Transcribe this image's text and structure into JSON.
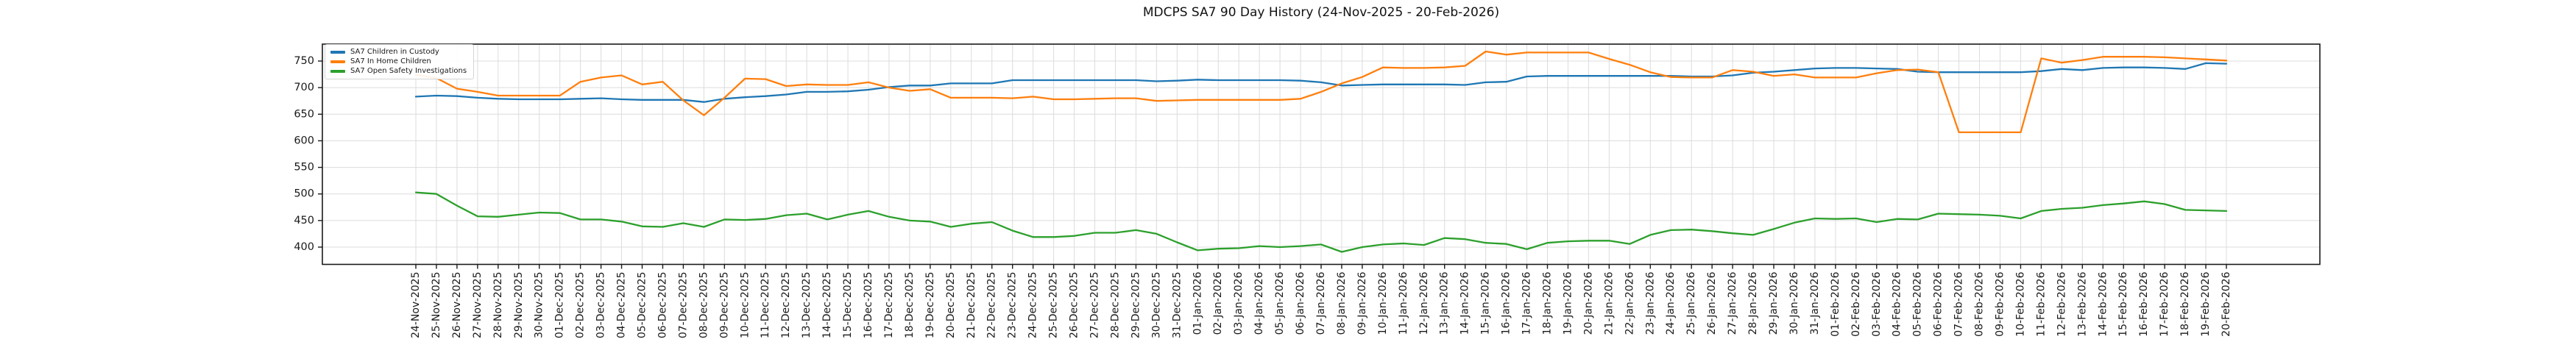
{
  "chart_data": {
    "type": "line",
    "title": "MDCPS SA7 90 Day History (24-Nov-2025 - 20-Feb-2026)",
    "grid": true,
    "legend_position": "upper-left",
    "ylim": [
      368,
      782
    ],
    "y_ticks": [
      400,
      450,
      500,
      550,
      600,
      650,
      700,
      750
    ],
    "colors": {
      "axis": "#1a1a1a",
      "grid": "#dcdcdc",
      "text": "#1a1a1a",
      "background": "#ffffff"
    },
    "x_labels": [
      "24-Nov-2025",
      "25-Nov-2025",
      "26-Nov-2025",
      "27-Nov-2025",
      "28-Nov-2025",
      "29-Nov-2025",
      "30-Nov-2025",
      "01-Dec-2025",
      "02-Dec-2025",
      "03-Dec-2025",
      "04-Dec-2025",
      "05-Dec-2025",
      "06-Dec-2025",
      "07-Dec-2025",
      "08-Dec-2025",
      "09-Dec-2025",
      "10-Dec-2025",
      "11-Dec-2025",
      "12-Dec-2025",
      "13-Dec-2025",
      "14-Dec-2025",
      "15-Dec-2025",
      "16-Dec-2025",
      "17-Dec-2025",
      "18-Dec-2025",
      "19-Dec-2025",
      "20-Dec-2025",
      "21-Dec-2025",
      "22-Dec-2025",
      "23-Dec-2025",
      "24-Dec-2025",
      "25-Dec-2025",
      "26-Dec-2025",
      "27-Dec-2025",
      "28-Dec-2025",
      "29-Dec-2025",
      "30-Dec-2025",
      "31-Dec-2025",
      "01-Jan-2026",
      "02-Jan-2026",
      "03-Jan-2026",
      "04-Jan-2026",
      "05-Jan-2026",
      "06-Jan-2026",
      "07-Jan-2026",
      "08-Jan-2026",
      "09-Jan-2026",
      "10-Jan-2026",
      "11-Jan-2026",
      "12-Jan-2026",
      "13-Jan-2026",
      "14-Jan-2026",
      "15-Jan-2026",
      "16-Jan-2026",
      "17-Jan-2026",
      "18-Jan-2026",
      "19-Jan-2026",
      "20-Jan-2026",
      "21-Jan-2026",
      "22-Jan-2026",
      "23-Jan-2026",
      "24-Jan-2026",
      "25-Jan-2026",
      "26-Jan-2026",
      "27-Jan-2026",
      "28-Jan-2026",
      "29-Jan-2026",
      "30-Jan-2026",
      "31-Jan-2026",
      "01-Feb-2026",
      "02-Feb-2026",
      "03-Feb-2026",
      "04-Feb-2026",
      "05-Feb-2026",
      "06-Feb-2026",
      "07-Feb-2026",
      "08-Feb-2026",
      "09-Feb-2026",
      "10-Feb-2026",
      "11-Feb-2026",
      "12-Feb-2026",
      "13-Feb-2026",
      "14-Feb-2026",
      "15-Feb-2026",
      "16-Feb-2026",
      "17-Feb-2026",
      "18-Feb-2026",
      "19-Feb-2026",
      "20-Feb-2026"
    ],
    "series": [
      {
        "name": "SA7 Children in Custody",
        "color": "#1f77b4",
        "values": [
          683,
          685,
          684,
          681,
          679,
          678,
          678,
          678,
          679,
          680,
          678,
          677,
          677,
          677,
          673,
          679,
          682,
          684,
          687,
          692,
          692,
          693,
          696,
          701,
          704,
          704,
          708,
          708,
          708,
          714,
          714,
          714,
          714,
          714,
          714,
          714,
          712,
          713,
          715,
          714,
          714,
          714,
          714,
          713,
          710,
          704,
          705,
          706,
          706,
          706,
          706,
          705,
          710,
          711,
          721,
          722,
          722,
          722,
          722,
          722,
          722,
          722,
          721,
          721,
          723,
          728,
          730,
          733,
          736,
          737,
          737,
          736,
          735,
          730,
          729,
          729,
          729,
          729,
          729,
          731,
          735,
          733,
          737,
          738,
          738,
          737,
          735,
          746,
          745
        ]
      },
      {
        "name": "SA7 In Home Children",
        "color": "#ff7f0e",
        "values": [
          724,
          718,
          698,
          692,
          685,
          685,
          685,
          685,
          711,
          719,
          723,
          706,
          711,
          676,
          648,
          681,
          717,
          716,
          703,
          706,
          705,
          705,
          710,
          700,
          694,
          697,
          681,
          681,
          681,
          680,
          683,
          678,
          678,
          679,
          680,
          680,
          675,
          676,
          677,
          677,
          677,
          677,
          677,
          679,
          692,
          708,
          720,
          738,
          737,
          737,
          738,
          741,
          768,
          762,
          766,
          766,
          766,
          766,
          754,
          743,
          729,
          720,
          719,
          719,
          733,
          730,
          722,
          725,
          719,
          719,
          719,
          727,
          733,
          734,
          729,
          616,
          616,
          616,
          616,
          755,
          747,
          752,
          758,
          758,
          758,
          757,
          755,
          753,
          751
        ]
      },
      {
        "name": "SA7 Open Safety Investigations",
        "color": "#2ca02c",
        "values": [
          503,
          500,
          478,
          458,
          457,
          461,
          465,
          464,
          452,
          452,
          448,
          439,
          438,
          445,
          438,
          452,
          451,
          453,
          460,
          463,
          452,
          461,
          468,
          457,
          450,
          448,
          438,
          444,
          447,
          431,
          419,
          419,
          421,
          427,
          427,
          432,
          425,
          409,
          394,
          397,
          398,
          402,
          400,
          402,
          405,
          391,
          400,
          405,
          407,
          404,
          417,
          415,
          408,
          406,
          396,
          408,
          411,
          412,
          412,
          406,
          423,
          432,
          433,
          430,
          426,
          423,
          434,
          446,
          454,
          453,
          454,
          447,
          453,
          452,
          463,
          462,
          461,
          459,
          454,
          468,
          472,
          474,
          479,
          482,
          486,
          481,
          470,
          469,
          468
        ]
      }
    ]
  }
}
